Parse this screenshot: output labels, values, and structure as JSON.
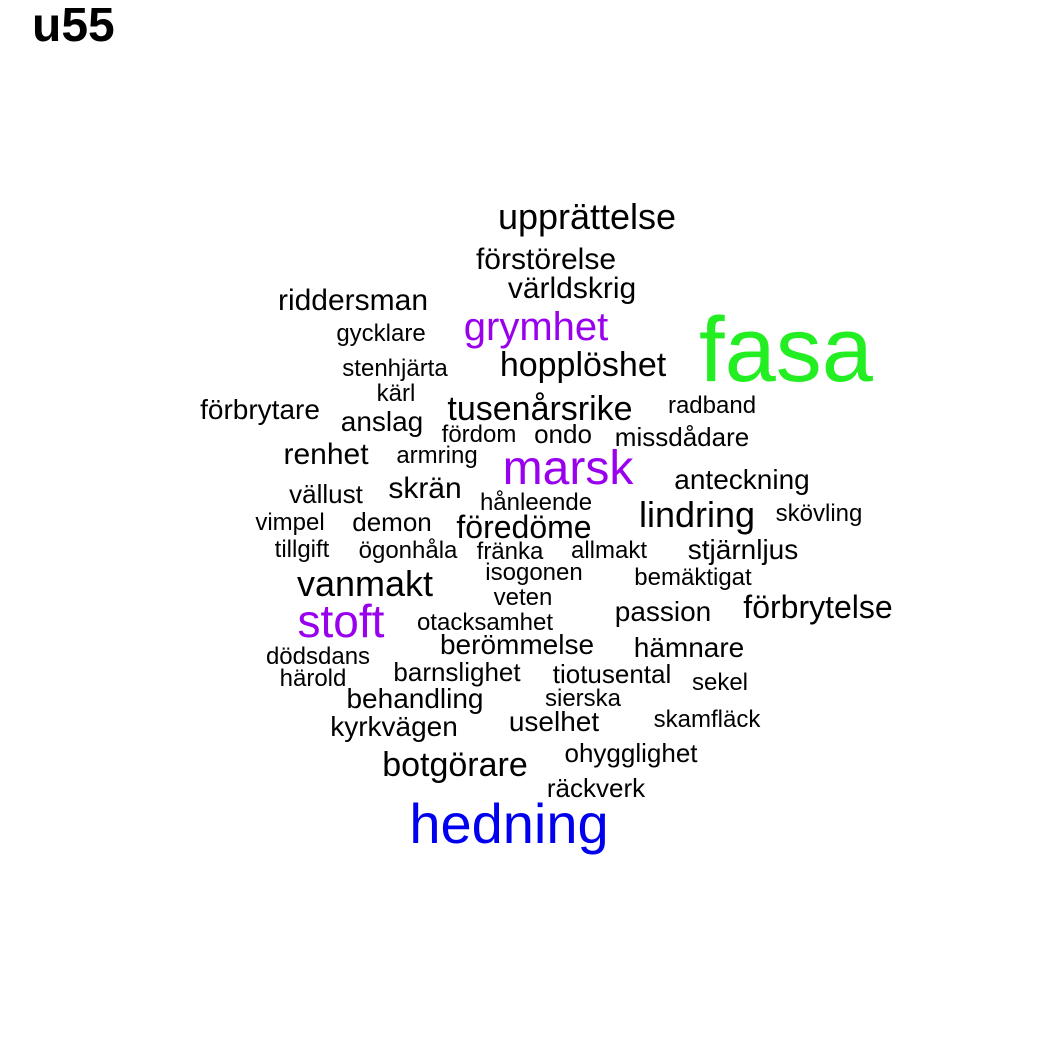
{
  "title": "u55",
  "colors": {
    "default": "#000000",
    "purple": "#9900ee",
    "green": "#22ee22",
    "blue": "#0000ee"
  },
  "words": [
    {
      "text": "fasa",
      "color": "green"
    },
    {
      "text": "hedning",
      "color": "blue"
    },
    {
      "text": "marsk",
      "color": "purple"
    },
    {
      "text": "stoft",
      "color": "purple"
    },
    {
      "text": "grymhet",
      "color": "purple"
    },
    {
      "text": "upprättelse",
      "color": "default"
    },
    {
      "text": "förstörelse",
      "color": "default"
    },
    {
      "text": "världskrig",
      "color": "default"
    },
    {
      "text": "riddersman",
      "color": "default"
    },
    {
      "text": "gycklare",
      "color": "default"
    },
    {
      "text": "hopplöshet",
      "color": "default"
    },
    {
      "text": "stenhjärta",
      "color": "default"
    },
    {
      "text": "kärl",
      "color": "default"
    },
    {
      "text": "förbrytare",
      "color": "default"
    },
    {
      "text": "anslag",
      "color": "default"
    },
    {
      "text": "tusenårsrike",
      "color": "default"
    },
    {
      "text": "radband",
      "color": "default"
    },
    {
      "text": "fördom",
      "color": "default"
    },
    {
      "text": "ondo",
      "color": "default"
    },
    {
      "text": "missdådare",
      "color": "default"
    },
    {
      "text": "renhet",
      "color": "default"
    },
    {
      "text": "armring",
      "color": "default"
    },
    {
      "text": "anteckning",
      "color": "default"
    },
    {
      "text": "vällust",
      "color": "default"
    },
    {
      "text": "skrän",
      "color": "default"
    },
    {
      "text": "hånleende",
      "color": "default"
    },
    {
      "text": "lindring",
      "color": "default"
    },
    {
      "text": "skövling",
      "color": "default"
    },
    {
      "text": "vimpel",
      "color": "default"
    },
    {
      "text": "demon",
      "color": "default"
    },
    {
      "text": "föredöme",
      "color": "default"
    },
    {
      "text": "tillgift",
      "color": "default"
    },
    {
      "text": "ögonhåla",
      "color": "default"
    },
    {
      "text": "fränka",
      "color": "default"
    },
    {
      "text": "allmakt",
      "color": "default"
    },
    {
      "text": "stjärnljus",
      "color": "default"
    },
    {
      "text": "vanmakt",
      "color": "default"
    },
    {
      "text": "isogonen",
      "color": "default"
    },
    {
      "text": "bemäktigat",
      "color": "default"
    },
    {
      "text": "veten",
      "color": "default"
    },
    {
      "text": "passion",
      "color": "default"
    },
    {
      "text": "förbrytelse",
      "color": "default"
    },
    {
      "text": "otacksamhet",
      "color": "default"
    },
    {
      "text": "berömmelse",
      "color": "default"
    },
    {
      "text": "hämnare",
      "color": "default"
    },
    {
      "text": "dödsdans",
      "color": "default"
    },
    {
      "text": "barnslighet",
      "color": "default"
    },
    {
      "text": "tiotusental",
      "color": "default"
    },
    {
      "text": "härold",
      "color": "default"
    },
    {
      "text": "sekel",
      "color": "default"
    },
    {
      "text": "behandling",
      "color": "default"
    },
    {
      "text": "sierska",
      "color": "default"
    },
    {
      "text": "kyrkvägen",
      "color": "default"
    },
    {
      "text": "uselhet",
      "color": "default"
    },
    {
      "text": "skamfläck",
      "color": "default"
    },
    {
      "text": "ohygglighet",
      "color": "default"
    },
    {
      "text": "botgörare",
      "color": "default"
    },
    {
      "text": "räckverk",
      "color": "default"
    }
  ]
}
